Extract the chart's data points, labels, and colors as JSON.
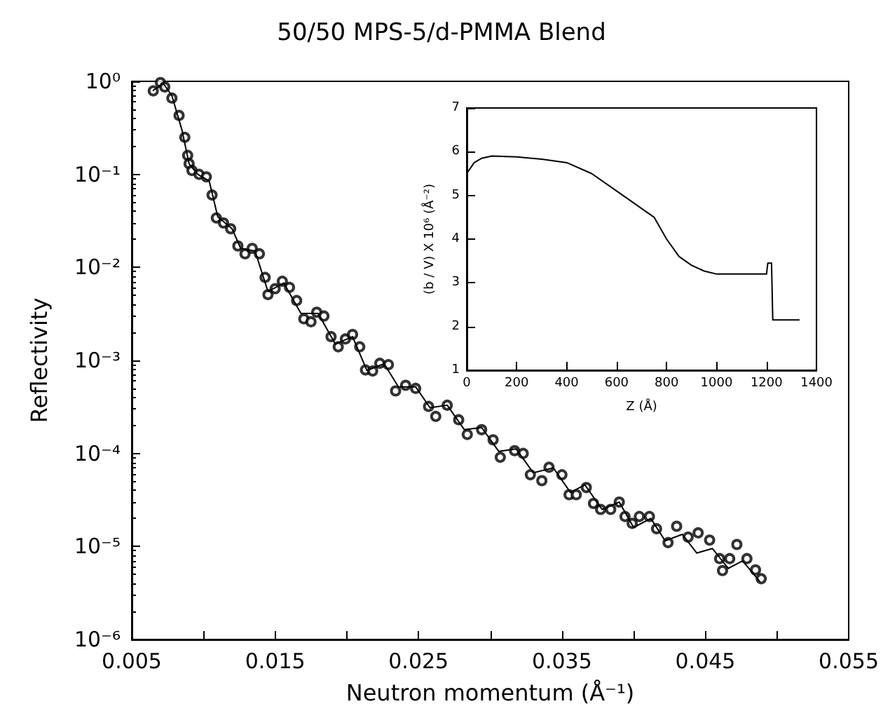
{
  "chart_data": [
    {
      "type": "scatter",
      "title": "50/50 MPS-5/d-PMMA Blend",
      "xlabel": "Neutron momentum (Å⁻¹)",
      "ylabel": "Reflectivity",
      "log": "y",
      "xlim": [
        0.005,
        0.055
      ],
      "ylim": [
        1e-06,
        1
      ],
      "xticks": [
        0.005,
        {
          "value": 0.01,
          "label": null
        },
        0.015,
        {
          "value": 0.02,
          "label": null
        },
        0.025,
        {
          "value": 0.03,
          "label": null
        },
        0.035,
        {
          "value": 0.04,
          "label": null
        },
        0.045,
        {
          "value": 0.05,
          "label": null
        },
        0.055
      ],
      "yticks": [
        {
          "value": 1e-06,
          "label": "10⁻⁶"
        },
        {
          "value": 1e-05,
          "label": "10⁻⁵"
        },
        {
          "value": 0.0001,
          "label": "10⁻⁴"
        },
        {
          "value": 0.001,
          "label": "10⁻³"
        },
        {
          "value": 0.01,
          "label": "10⁻²"
        },
        {
          "value": 0.1,
          "label": "10⁻¹"
        },
        {
          "value": 1,
          "label": "10⁰"
        }
      ],
      "series": [
        {
          "type": "scatter",
          "color": "#000000",
          "marker": "circle",
          "x": [
            0.0065,
            0.007,
            0.0073,
            0.0078,
            0.0083,
            0.0087,
            0.0089,
            0.009,
            0.0092,
            0.0097,
            0.0102,
            0.0106,
            0.0109,
            0.0114,
            0.0119,
            0.0124,
            0.0129,
            0.0134,
            0.0139,
            0.0143,
            0.0145,
            0.015,
            0.0155,
            0.016,
            0.0165,
            0.017,
            0.0175,
            0.0179,
            0.0184,
            0.0189,
            0.0194,
            0.0199,
            0.0204,
            0.0209,
            0.0213,
            0.0218,
            0.0223,
            0.0229,
            0.0234,
            0.0241,
            0.0248,
            0.0257,
            0.0262,
            0.027,
            0.0278,
            0.0284,
            0.0294,
            0.0302,
            0.0307,
            0.0317,
            0.0323,
            0.0328,
            0.0336,
            0.0341,
            0.035,
            0.0355,
            0.036,
            0.0367,
            0.0372,
            0.0377,
            0.0384,
            0.039,
            0.0394,
            0.0399,
            0.0404,
            0.0411,
            0.0416,
            0.0424,
            0.043,
            0.0438,
            0.0445,
            0.0453,
            0.046,
            0.0462,
            0.0467,
            0.0472,
            0.0479,
            0.0485,
            0.0489
          ],
          "values": [
            0.79,
            0.97,
            0.87,
            0.66,
            0.43,
            0.25,
            0.16,
            0.13,
            0.11,
            0.1,
            0.094,
            0.06,
            0.034,
            0.03,
            0.026,
            0.017,
            0.014,
            0.016,
            0.014,
            0.0078,
            0.0051,
            0.0059,
            0.0071,
            0.0061,
            0.0044,
            0.0028,
            0.0026,
            0.0033,
            0.003,
            0.0018,
            0.0014,
            0.0017,
            0.0019,
            0.0014,
            0.00079,
            0.00077,
            0.00093,
            0.0009,
            0.00047,
            0.00054,
            0.0005,
            0.00032,
            0.00025,
            0.00033,
            0.00023,
            0.00016,
            0.00018,
            0.00014,
            9.1e-05,
            0.000107,
            0.0001,
            5.9e-05,
            5.1e-05,
            7.1e-05,
            5.9e-05,
            3.6e-05,
            3.6e-05,
            4.3e-05,
            2.9e-05,
            2.5e-05,
            2.5e-05,
            3e-05,
            2.1e-05,
            1.77e-05,
            2.1e-05,
            2.1e-05,
            1.55e-05,
            1.1e-05,
            1.65e-05,
            1.26e-05,
            1.4e-05,
            1.17e-05,
            7.4e-06,
            5.5e-06,
            7.4e-06,
            1.05e-05,
            7.4e-06,
            5.6e-06,
            4.5e-06
          ]
        },
        {
          "type": "line",
          "color": "#000000",
          "marker": "none",
          "line_style": "solid",
          "x": [
            0.0065,
            0.0072,
            0.0078,
            0.0085,
            0.009,
            0.0096,
            0.0104,
            0.011,
            0.012,
            0.0126,
            0.0136,
            0.0145,
            0.0156,
            0.0168,
            0.018,
            0.0192,
            0.0204,
            0.0214,
            0.0226,
            0.0236,
            0.0248,
            0.0258,
            0.027,
            0.0282,
            0.0294,
            0.0306,
            0.0318,
            0.033,
            0.0344,
            0.0356,
            0.0366,
            0.0378,
            0.039,
            0.04,
            0.0412,
            0.0422,
            0.0434,
            0.0444,
            0.0455,
            0.0466,
            0.0476,
            0.0488
          ],
          "values": [
            0.8,
            0.95,
            0.7,
            0.3,
            0.13,
            0.1,
            0.085,
            0.035,
            0.026,
            0.016,
            0.015,
            0.0055,
            0.0068,
            0.0032,
            0.0032,
            0.0015,
            0.0018,
            0.00078,
            0.00092,
            0.00052,
            0.00052,
            0.00031,
            0.00033,
            0.00018,
            0.00019,
            0.000105,
            0.000112,
            6.2e-05,
            7e-05,
            3.8e-05,
            4.6e-05,
            2.5e-05,
            3e-05,
            1.6e-05,
            2e-05,
            1.15e-05,
            1.35e-05,
            8.5e-06,
            9.5e-06,
            5.8e-06,
            7e-06,
            4.2e-06
          ]
        }
      ]
    },
    {
      "type": "line",
      "xlabel": "Z (Å)",
      "ylabel": "(b / V) X 10⁶ (Å⁻²)",
      "xlim": [
        0,
        1400
      ],
      "ylim": [
        1,
        7
      ],
      "xticks": [
        0,
        200,
        400,
        600,
        800,
        1000,
        1200,
        1400
      ],
      "yticks": [
        1,
        2,
        3,
        4,
        5,
        6,
        7
      ],
      "marker": "none",
      "line_style": "solid",
      "series": [
        {
          "color": "#000000",
          "x": [
            0,
            30,
            60,
            100,
            200,
            300,
            400,
            500,
            600,
            700,
            750,
            800,
            850,
            900,
            950,
            1000,
            1100,
            1200,
            1205,
            1220,
            1225,
            1230,
            1330
          ],
          "values": [
            5.5,
            5.75,
            5.85,
            5.9,
            5.88,
            5.83,
            5.75,
            5.5,
            5.1,
            4.7,
            4.5,
            4.0,
            3.6,
            3.4,
            3.27,
            3.2,
            3.2,
            3.2,
            3.45,
            3.45,
            2.15,
            2.15,
            2.15
          ]
        }
      ]
    }
  ]
}
